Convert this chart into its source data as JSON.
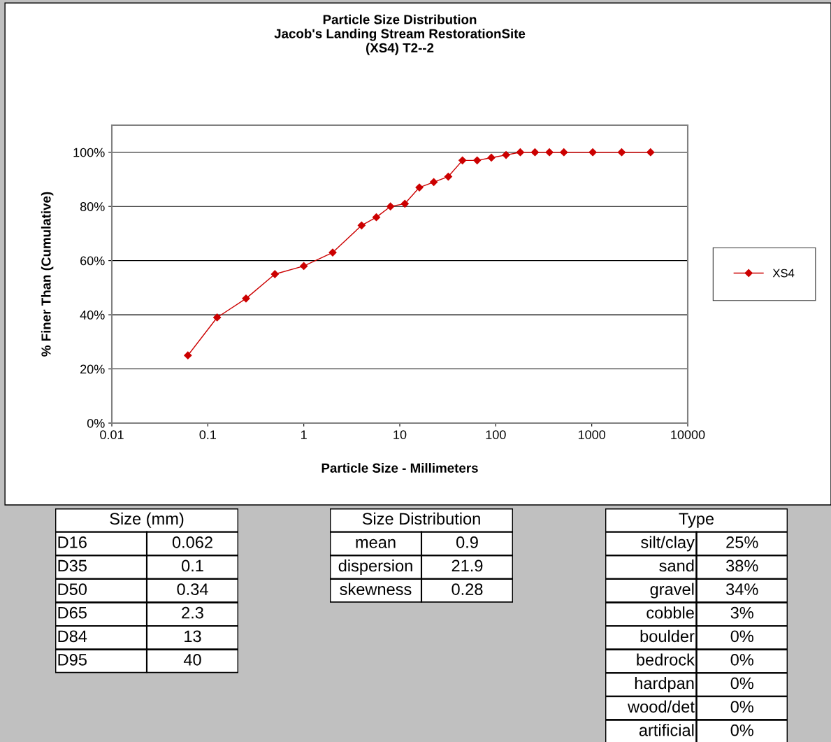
{
  "chart_data": [
    {
      "type": "line",
      "title": "Particle Size Distribution\nJacob's Landing Stream RestorationSite\n(XS4) T2--2",
      "xlabel": "Particle Size - Millimeters",
      "ylabel": "% Finer Than (Cumulative)",
      "log": "x",
      "xlim": [
        0.01,
        10000
      ],
      "xticks": [
        0.01,
        0.1,
        1,
        10,
        100,
        1000,
        10000
      ],
      "ylim": [
        0,
        110
      ],
      "yticks": [
        {
          "value": 0,
          "label": "0%"
        },
        {
          "value": 20,
          "label": "20%"
        },
        {
          "value": 40,
          "label": "40%"
        },
        {
          "value": 60,
          "label": "60%"
        },
        {
          "value": 80,
          "label": "80%"
        },
        {
          "value": 100,
          "label": "100%"
        }
      ],
      "grid": "y",
      "legend": "right",
      "marker": "diamond",
      "line_style": "solid",
      "x": [
        0.062,
        0.125,
        0.25,
        0.5,
        1,
        2,
        4,
        5.7,
        8,
        11.3,
        16,
        22.6,
        32,
        45,
        64,
        90,
        128,
        180,
        256,
        362,
        512,
        1024,
        2048,
        4096
      ],
      "series": [
        {
          "name": "XS4",
          "color": "#cc0000",
          "values": [
            25,
            39,
            46,
            55,
            58,
            63,
            73,
            76,
            80,
            81,
            87,
            89,
            91,
            97,
            97,
            98,
            99,
            100,
            100,
            100,
            100,
            100,
            100,
            100
          ]
        }
      ]
    },
    {
      "type": "other",
      "title": "Size (mm)",
      "categories": [
        "D16",
        "D35",
        "D50",
        "D65",
        "D84",
        "D95"
      ],
      "values": [
        0.062,
        0.1,
        0.34,
        2.3,
        13,
        40
      ],
      "data_labels": true
    },
    {
      "type": "other",
      "title": "Size Distribution",
      "categories": [
        "mean",
        "dispersion",
        "skewness"
      ],
      "values": [
        0.9,
        21.9,
        0.28
      ],
      "data_labels": true
    },
    {
      "type": "other",
      "title": "Type",
      "categories": [
        "silt/clay",
        "sand",
        "gravel",
        "cobble",
        "boulder",
        "bedrock",
        "hardpan",
        "wood/det",
        "artificial"
      ],
      "values": [
        25,
        38,
        34,
        3,
        0,
        0,
        0,
        0,
        0
      ],
      "value_labels": [
        "25%",
        "38%",
        "34%",
        "3%",
        "0%",
        "0%",
        "0%",
        "0%",
        "0%"
      ]
    }
  ]
}
